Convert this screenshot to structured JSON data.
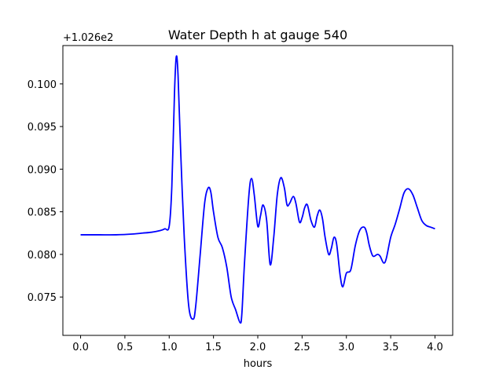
{
  "chart_data": {
    "type": "line",
    "title": "Water Depth h at gauge 540",
    "xlabel": "hours",
    "ylabel": "",
    "y_offset_label": "+1.026e2",
    "xlim": [
      -0.2,
      4.2
    ],
    "ylim": [
      0.0705,
      0.1045
    ],
    "x_ticks": [
      0.0,
      0.5,
      1.0,
      1.5,
      2.0,
      2.5,
      3.0,
      3.5,
      4.0
    ],
    "x_tick_labels": [
      "0.0",
      "0.5",
      "1.0",
      "1.5",
      "2.0",
      "2.5",
      "3.0",
      "3.5",
      "4.0"
    ],
    "y_ticks": [
      0.075,
      0.08,
      0.085,
      0.09,
      0.095,
      0.1
    ],
    "y_tick_labels": [
      "0.075",
      "0.080",
      "0.085",
      "0.090",
      "0.095",
      "0.100"
    ],
    "grid": false,
    "series": [
      {
        "color": "#0000ff",
        "x": [
          0.0,
          0.2,
          0.4,
          0.6,
          0.7,
          0.8,
          0.9,
          0.95,
          1.0,
          1.03,
          1.06,
          1.08,
          1.1,
          1.13,
          1.17,
          1.22,
          1.27,
          1.3,
          1.35,
          1.4,
          1.44,
          1.47,
          1.5,
          1.55,
          1.6,
          1.65,
          1.7,
          1.75,
          1.8,
          1.82,
          1.85,
          1.9,
          1.93,
          1.96,
          2.0,
          2.03,
          2.06,
          2.1,
          2.14,
          2.18,
          2.22,
          2.26,
          2.3,
          2.33,
          2.36,
          2.4,
          2.43,
          2.47,
          2.5,
          2.53,
          2.56,
          2.6,
          2.64,
          2.67,
          2.7,
          2.73,
          2.76,
          2.8,
          2.83,
          2.86,
          2.89,
          2.93,
          2.96,
          3.0,
          3.05,
          3.1,
          3.15,
          3.2,
          3.23,
          3.26,
          3.3,
          3.35,
          3.38,
          3.42,
          3.45,
          3.5,
          3.55,
          3.6,
          3.65,
          3.7,
          3.75,
          3.8,
          3.85,
          3.9,
          3.95,
          4.0
        ],
        "y": [
          0.0823,
          0.0823,
          0.0823,
          0.0824,
          0.0825,
          0.0826,
          0.0828,
          0.083,
          0.0833,
          0.088,
          0.099,
          0.1032,
          0.101,
          0.092,
          0.082,
          0.074,
          0.0724,
          0.074,
          0.08,
          0.086,
          0.0878,
          0.0873,
          0.085,
          0.082,
          0.0808,
          0.0785,
          0.075,
          0.0735,
          0.072,
          0.073,
          0.079,
          0.087,
          0.0889,
          0.087,
          0.0833,
          0.0845,
          0.0858,
          0.084,
          0.0788,
          0.082,
          0.087,
          0.089,
          0.0878,
          0.0858,
          0.086,
          0.0868,
          0.086,
          0.0838,
          0.0843,
          0.0855,
          0.0858,
          0.084,
          0.0832,
          0.0845,
          0.0852,
          0.0842,
          0.082,
          0.08,
          0.0807,
          0.082,
          0.0812,
          0.0775,
          0.0762,
          0.0778,
          0.0782,
          0.081,
          0.0828,
          0.0832,
          0.0825,
          0.081,
          0.0798,
          0.08,
          0.0798,
          0.079,
          0.0795,
          0.082,
          0.0835,
          0.0853,
          0.0872,
          0.0877,
          0.087,
          0.0855,
          0.084,
          0.0834,
          0.0832,
          0.083
        ]
      }
    ]
  }
}
